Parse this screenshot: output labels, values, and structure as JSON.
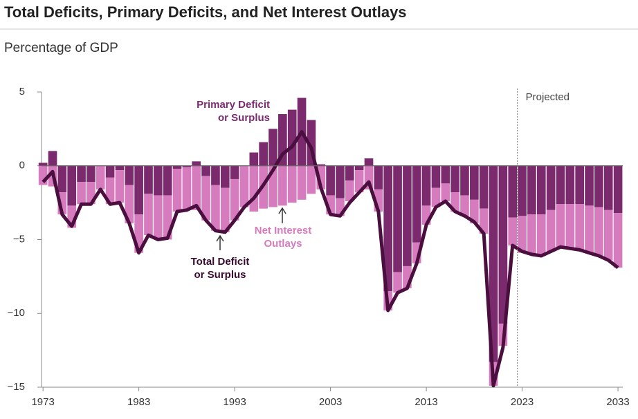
{
  "chart_data": {
    "type": "bar",
    "title": "Total Deficits, Primary Deficits, and Net Interest Outlays",
    "subtitle": "Percentage of GDP",
    "x": [
      1973,
      1974,
      1975,
      1976,
      1977,
      1978,
      1979,
      1980,
      1981,
      1982,
      1983,
      1984,
      1985,
      1986,
      1987,
      1988,
      1989,
      1990,
      1991,
      1992,
      1993,
      1994,
      1995,
      1996,
      1997,
      1998,
      1999,
      2000,
      2001,
      2002,
      2003,
      2004,
      2005,
      2006,
      2007,
      2008,
      2009,
      2010,
      2011,
      2012,
      2013,
      2014,
      2015,
      2016,
      2017,
      2018,
      2019,
      2020,
      2021,
      2022,
      2023,
      2024,
      2025,
      2026,
      2027,
      2028,
      2029,
      2030,
      2031,
      2032,
      2033
    ],
    "series": [
      {
        "name": "Primary Deficit or Surplus",
        "color": "#7b2a6e",
        "values": [
          0.2,
          1.0,
          -1.8,
          -2.7,
          -1.1,
          -1.1,
          0.0,
          -0.8,
          -0.3,
          -1.3,
          -3.3,
          -1.9,
          -2.0,
          -2.0,
          -0.2,
          -0.1,
          0.3,
          -0.7,
          -1.3,
          -1.5,
          -0.9,
          0.0,
          0.9,
          1.6,
          2.5,
          3.5,
          3.8,
          4.6,
          3.1,
          0.1,
          -2.0,
          -2.2,
          -1.0,
          -0.3,
          0.5,
          -1.6,
          -8.5,
          -7.2,
          -6.8,
          -5.2,
          -2.7,
          -1.5,
          -1.2,
          -1.8,
          -2.0,
          -2.3,
          -2.9,
          -13.3,
          -10.7,
          -3.5,
          -3.4,
          -3.3,
          -3.3,
          -3.0,
          -2.6,
          -2.6,
          -2.6,
          -2.7,
          -2.8,
          -3.0,
          -3.2
        ]
      },
      {
        "name": "Net Interest Outlays",
        "color": "#d67bbd",
        "values": [
          -1.3,
          -1.4,
          -1.5,
          -1.5,
          -1.5,
          -1.5,
          -1.6,
          -1.8,
          -2.2,
          -2.6,
          -2.6,
          -2.8,
          -3.0,
          -3.0,
          -2.9,
          -2.9,
          -3.0,
          -3.0,
          -3.1,
          -3.0,
          -2.8,
          -2.8,
          -3.1,
          -2.9,
          -2.8,
          -2.7,
          -2.5,
          -2.3,
          -1.9,
          -1.6,
          -1.3,
          -1.2,
          -1.4,
          -1.5,
          -1.6,
          -1.5,
          -1.3,
          -1.4,
          -1.5,
          -1.4,
          -1.3,
          -1.3,
          -1.2,
          -1.3,
          -1.4,
          -1.6,
          -1.7,
          -1.6,
          -1.5,
          -1.9,
          -2.5,
          -2.7,
          -2.8,
          -2.8,
          -2.9,
          -3.0,
          -3.1,
          -3.2,
          -3.3,
          -3.4,
          -3.7
        ]
      },
      {
        "name": "Total Deficit or Surplus",
        "color": "#4a0f3e",
        "values": [
          -1.1,
          -0.4,
          -3.3,
          -4.1,
          -2.6,
          -2.6,
          -1.6,
          -2.6,
          -2.5,
          -3.9,
          -5.9,
          -4.7,
          -5.0,
          -4.9,
          -3.1,
          -3.0,
          -2.7,
          -3.7,
          -4.4,
          -4.5,
          -3.7,
          -2.8,
          -2.2,
          -1.3,
          -0.3,
          0.8,
          1.3,
          2.3,
          1.2,
          -1.5,
          -3.3,
          -3.4,
          -2.5,
          -1.8,
          -1.1,
          -3.1,
          -9.8,
          -8.6,
          -8.3,
          -6.6,
          -4.0,
          -2.8,
          -2.4,
          -3.1,
          -3.4,
          -3.8,
          -4.6,
          -14.9,
          -12.3,
          -5.4,
          -5.8,
          -6.0,
          -6.1,
          -5.8,
          -5.5,
          -5.6,
          -5.7,
          -5.9,
          -6.1,
          -6.4,
          -6.9
        ]
      }
    ],
    "series_labels": [
      [
        "Primary Deficit",
        "or Surplus"
      ],
      [
        "Net Interest",
        "Outlays"
      ],
      [
        "Total Deficit",
        "or Surplus"
      ]
    ],
    "projection": {
      "text": "Projected",
      "x": 2022.5
    },
    "xlim": [
      1972.7,
      2033.5
    ],
    "xticks": [
      1973,
      1983,
      1993,
      2003,
      2013,
      2023,
      2033
    ],
    "ylim": [
      -15,
      5
    ],
    "yticks": [
      5,
      0,
      {
        "value": -5,
        "label": "−5"
      },
      {
        "value": -10,
        "label": "−10"
      },
      {
        "value": -15,
        "label": "−15"
      }
    ]
  }
}
